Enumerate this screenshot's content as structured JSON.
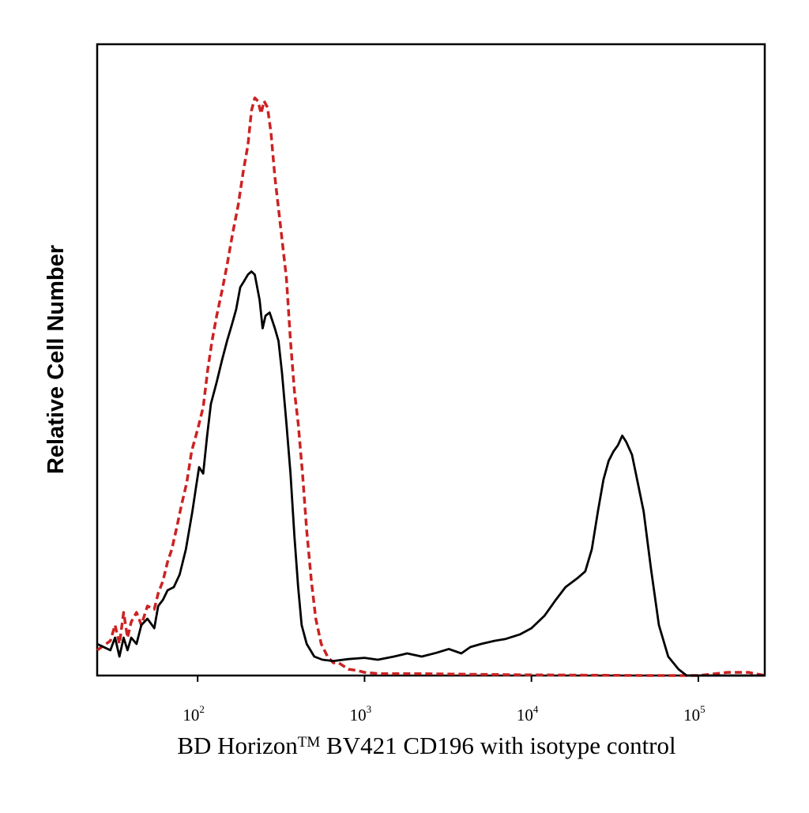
{
  "chart_data": {
    "type": "line",
    "title": "",
    "xlabel": "BD Horizon",
    "xlabel_tm": "TM",
    "xlabel_rest": " BV421 CD196 with isotype control",
    "ylabel": "Relative Cell Number",
    "x_scale": "log",
    "xlim": [
      25,
      250000
    ],
    "ylim": [
      0,
      100
    ],
    "grid": false,
    "legend": "none",
    "x_ticks": [
      {
        "value": 100,
        "base": "10",
        "exp": "2"
      },
      {
        "value": 1000,
        "base": "10",
        "exp": "3"
      },
      {
        "value": 10000,
        "base": "10",
        "exp": "4"
      },
      {
        "value": 100000,
        "base": "10",
        "exp": "5"
      }
    ],
    "series": [
      {
        "color": "#cc2222",
        "dash": true,
        "points": [
          [
            25,
            4
          ],
          [
            30,
            5.5
          ],
          [
            32,
            8
          ],
          [
            34,
            5
          ],
          [
            36,
            10
          ],
          [
            38,
            6
          ],
          [
            40,
            8.5
          ],
          [
            43,
            10
          ],
          [
            46,
            8
          ],
          [
            50,
            11
          ],
          [
            55,
            10.5
          ],
          [
            58,
            13
          ],
          [
            62,
            15
          ],
          [
            66,
            18
          ],
          [
            70,
            20
          ],
          [
            75,
            23.5
          ],
          [
            80,
            27
          ],
          [
            86,
            30.5
          ],
          [
            92,
            35.5
          ],
          [
            100,
            39
          ],
          [
            108,
            42.5
          ],
          [
            115,
            48.5
          ],
          [
            122,
            53
          ],
          [
            130,
            57
          ],
          [
            140,
            61
          ],
          [
            150,
            65
          ],
          [
            162,
            70
          ],
          [
            175,
            74.5
          ],
          [
            188,
            80
          ],
          [
            200,
            84
          ],
          [
            210,
            89.5
          ],
          [
            220,
            91.5
          ],
          [
            230,
            91
          ],
          [
            240,
            89
          ],
          [
            250,
            91
          ],
          [
            262,
            90
          ],
          [
            275,
            86
          ],
          [
            290,
            79
          ],
          [
            305,
            74
          ],
          [
            322,
            68.5
          ],
          [
            340,
            63
          ],
          [
            360,
            53
          ],
          [
            380,
            45
          ],
          [
            400,
            40
          ],
          [
            425,
            32
          ],
          [
            450,
            23
          ],
          [
            480,
            15
          ],
          [
            510,
            9
          ],
          [
            550,
            5
          ],
          [
            600,
            3
          ],
          [
            650,
            2
          ],
          [
            700,
            2
          ],
          [
            800,
            1
          ],
          [
            900,
            0.8
          ],
          [
            1000,
            0.5
          ],
          [
            1200,
            0.3
          ],
          [
            2000,
            0.3
          ],
          [
            4000,
            0.2
          ],
          [
            10000,
            0.1
          ],
          [
            50000,
            0
          ],
          [
            100000,
            0
          ],
          [
            150000,
            0.5
          ],
          [
            200000,
            0.5
          ],
          [
            250000,
            0
          ]
        ]
      },
      {
        "color": "#000000",
        "dash": false,
        "points": [
          [
            25,
            5
          ],
          [
            30,
            4
          ],
          [
            32,
            6
          ],
          [
            34,
            3
          ],
          [
            36,
            6
          ],
          [
            38,
            4
          ],
          [
            40,
            6
          ],
          [
            43,
            5
          ],
          [
            46,
            8
          ],
          [
            50,
            9
          ],
          [
            55,
            7.5
          ],
          [
            58,
            11
          ],
          [
            62,
            12
          ],
          [
            66,
            13.5
          ],
          [
            72,
            14
          ],
          [
            78,
            16
          ],
          [
            85,
            20
          ],
          [
            93,
            26
          ],
          [
            98,
            30
          ],
          [
            102,
            33
          ],
          [
            108,
            32
          ],
          [
            114,
            38
          ],
          [
            120,
            43
          ],
          [
            130,
            46.5
          ],
          [
            140,
            50
          ],
          [
            150,
            53
          ],
          [
            160,
            55.5
          ],
          [
            170,
            58
          ],
          [
            180,
            61.5
          ],
          [
            190,
            62.5
          ],
          [
            200,
            63.5
          ],
          [
            210,
            64
          ],
          [
            220,
            63.5
          ],
          [
            235,
            59.5
          ],
          [
            245,
            55
          ],
          [
            255,
            57
          ],
          [
            270,
            57.5
          ],
          [
            290,
            55
          ],
          [
            305,
            53
          ],
          [
            320,
            48
          ],
          [
            340,
            40
          ],
          [
            360,
            32
          ],
          [
            380,
            22
          ],
          [
            400,
            14
          ],
          [
            420,
            8
          ],
          [
            450,
            5
          ],
          [
            500,
            3
          ],
          [
            560,
            2.5
          ],
          [
            650,
            2.3
          ],
          [
            800,
            2.6
          ],
          [
            1000,
            2.8
          ],
          [
            1200,
            2.5
          ],
          [
            1500,
            3
          ],
          [
            1800,
            3.5
          ],
          [
            2200,
            3
          ],
          [
            2700,
            3.6
          ],
          [
            3200,
            4.2
          ],
          [
            3800,
            3.5
          ],
          [
            4300,
            4.5
          ],
          [
            5000,
            5
          ],
          [
            6000,
            5.5
          ],
          [
            7000,
            5.8
          ],
          [
            8500,
            6.5
          ],
          [
            10000,
            7.5
          ],
          [
            12000,
            9.5
          ],
          [
            14000,
            12
          ],
          [
            16000,
            14
          ],
          [
            19000,
            15.5
          ],
          [
            21000,
            16.5
          ],
          [
            23000,
            20
          ],
          [
            25000,
            26
          ],
          [
            27000,
            31
          ],
          [
            29000,
            34
          ],
          [
            31000,
            35.5
          ],
          [
            33000,
            36.5
          ],
          [
            35000,
            38
          ],
          [
            37000,
            37
          ],
          [
            40000,
            35
          ],
          [
            43000,
            31
          ],
          [
            47000,
            26
          ],
          [
            52000,
            17
          ],
          [
            58000,
            8
          ],
          [
            66000,
            3
          ],
          [
            76000,
            1
          ],
          [
            85000,
            0
          ],
          [
            250000,
            0
          ]
        ]
      }
    ]
  }
}
